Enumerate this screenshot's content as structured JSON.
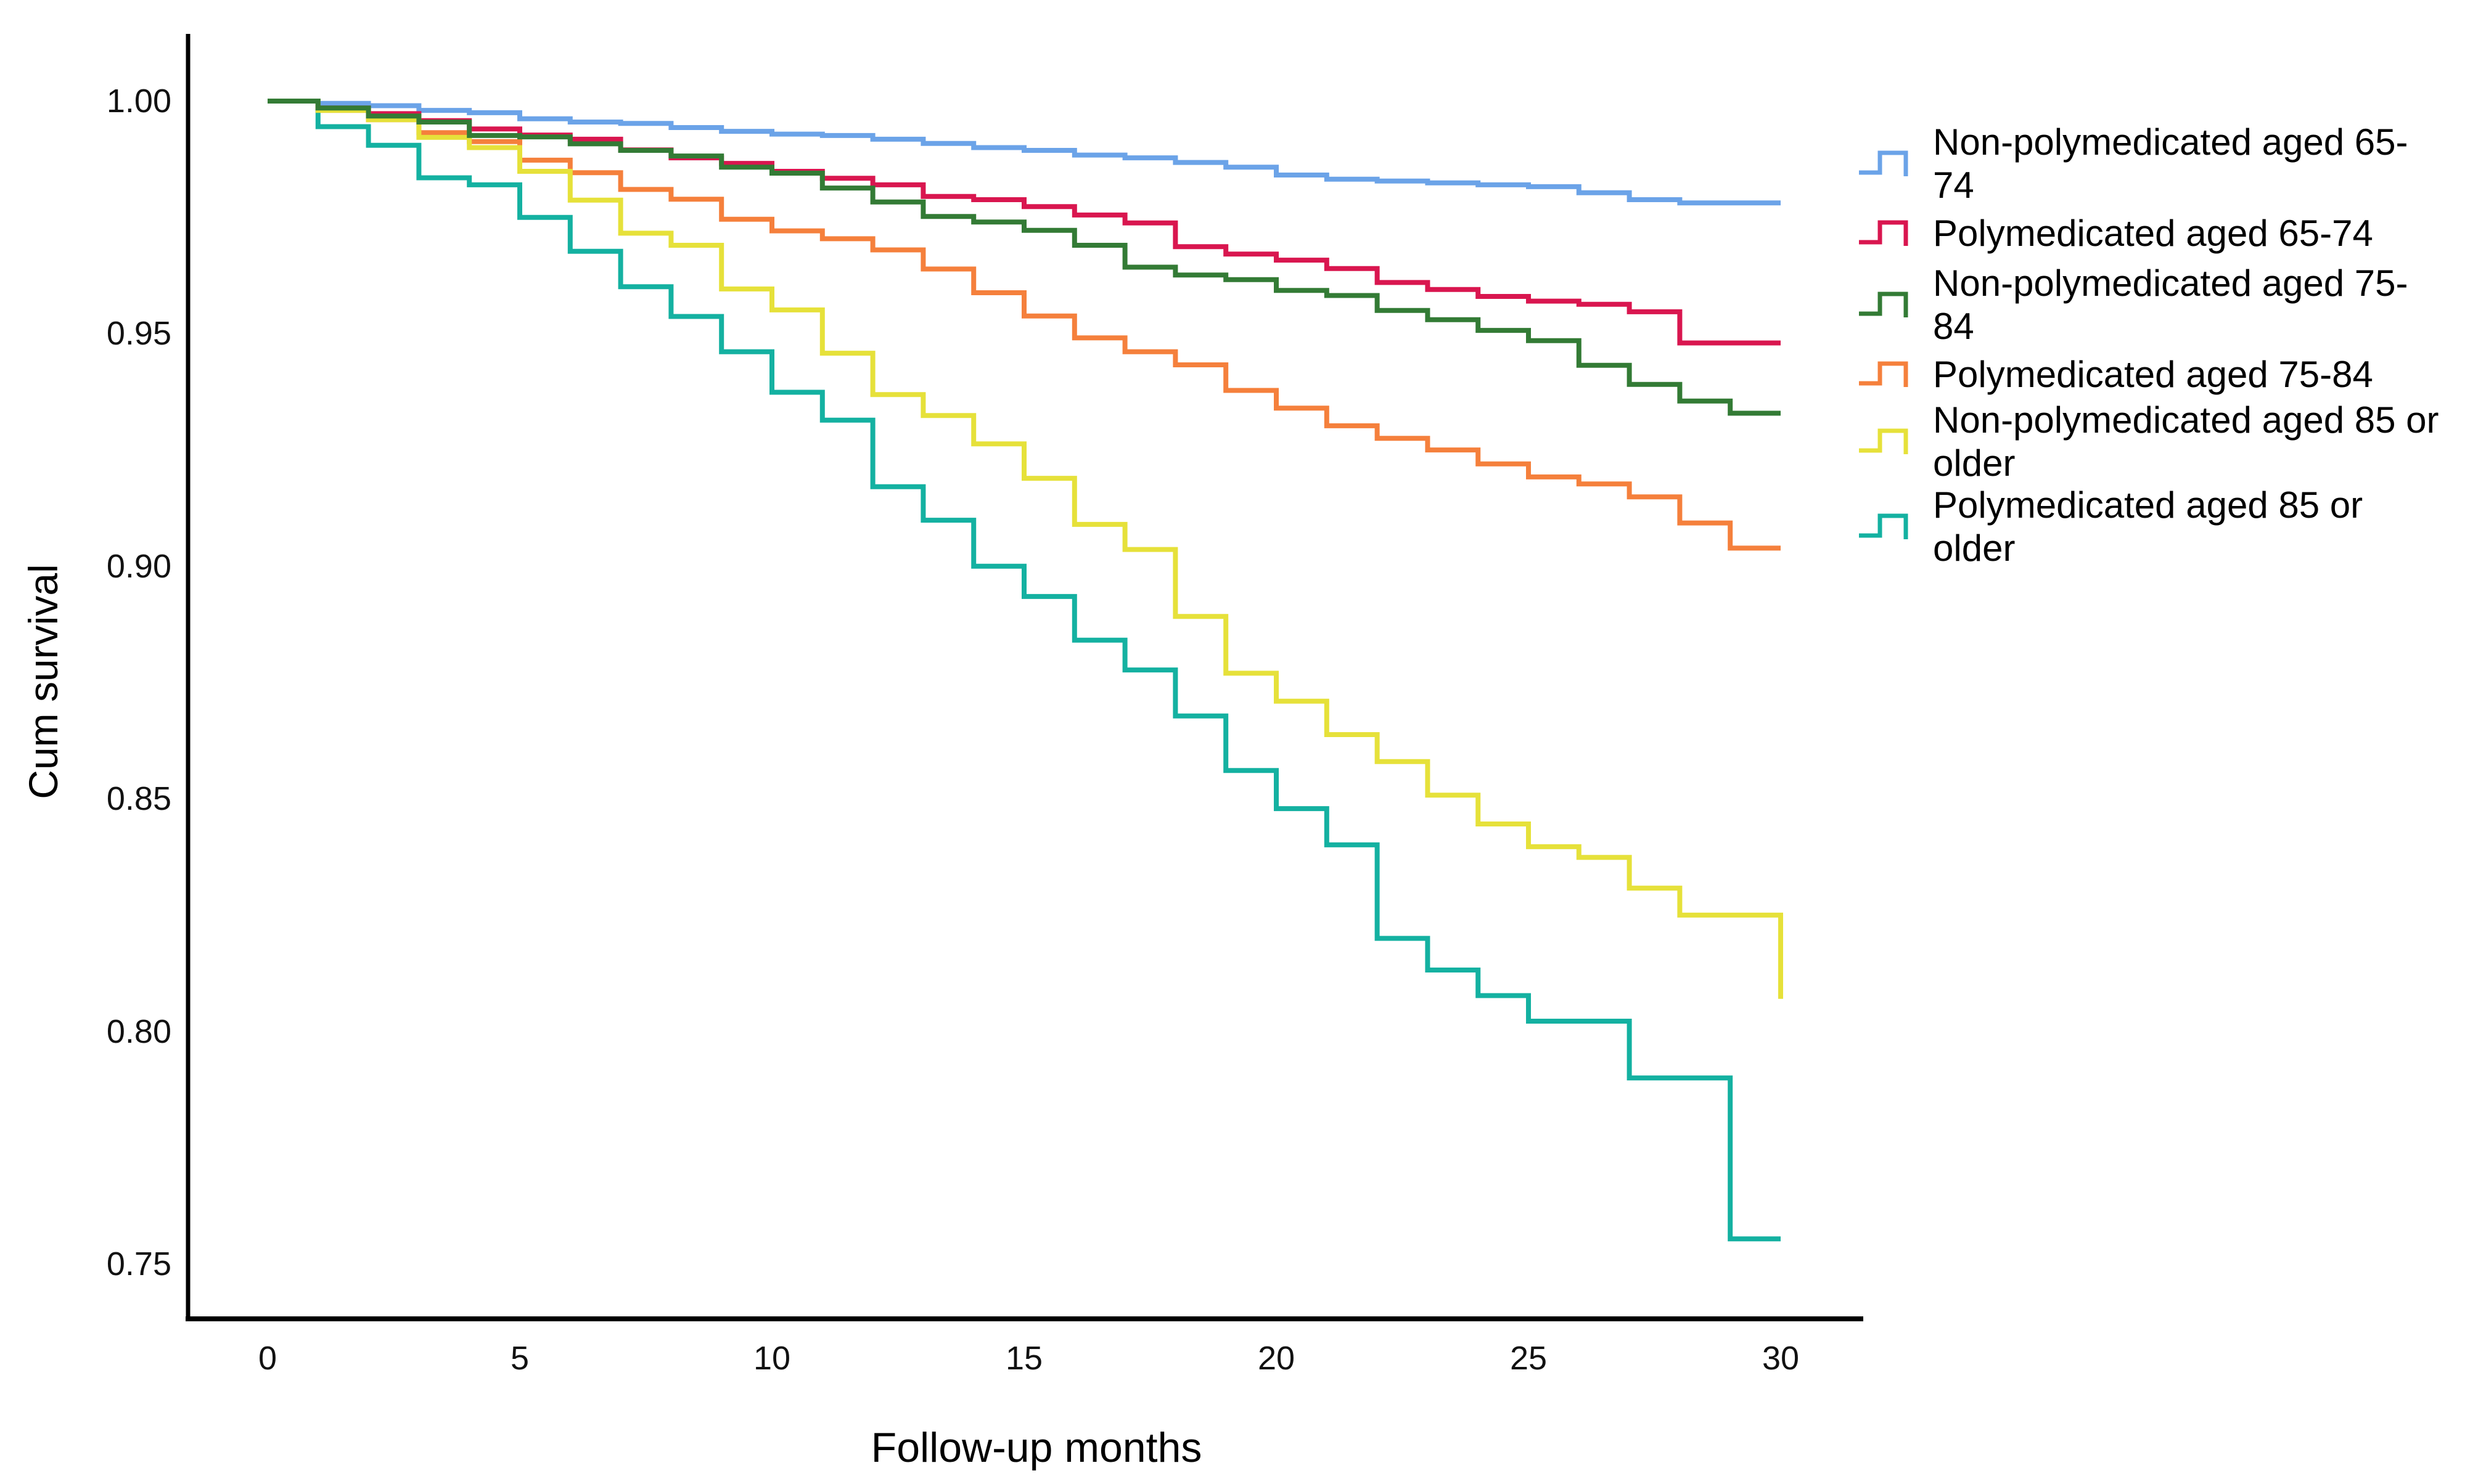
{
  "chart_data": {
    "type": "line",
    "subtype": "step-survival",
    "title": "",
    "xlabel": "Follow-up months",
    "ylabel": "Cum survival",
    "x_tick_labels": [
      "0",
      "5",
      "10",
      "15",
      "20",
      "25",
      "30"
    ],
    "y_tick_labels": [
      "1.00",
      "0.95",
      "0.90",
      "0.85",
      "0.80",
      "0.75"
    ],
    "x_ticks": [
      0,
      5,
      10,
      15,
      20,
      25,
      30
    ],
    "y_ticks": [
      1.0,
      0.95,
      0.9,
      0.85,
      0.8,
      0.75
    ],
    "xlim": [
      0,
      30
    ],
    "ylim": [
      0.738,
      1.012
    ],
    "grid": false,
    "legend_position": "right",
    "x_months": [
      0,
      1,
      2,
      3,
      4,
      5,
      6,
      7,
      8,
      9,
      10,
      11,
      12,
      13,
      14,
      15,
      16,
      17,
      18,
      19,
      20,
      21,
      22,
      23,
      24,
      25,
      26,
      27,
      28,
      29,
      30
    ],
    "series": [
      {
        "name": "Non-polymedicated aged 65-\n74",
        "color": "#6BA3E8",
        "values": [
          1.0,
          0.9995,
          0.999,
          0.998,
          0.9975,
          0.9962,
          0.9955,
          0.9952,
          0.9943,
          0.9935,
          0.9929,
          0.9926,
          0.9918,
          0.9909,
          0.99,
          0.9894,
          0.9884,
          0.9878,
          0.9868,
          0.9858,
          0.9841,
          0.9832,
          0.9828,
          0.9824,
          0.982,
          0.9816,
          0.9803,
          0.9788,
          0.9781,
          0.9781,
          0.9781
        ]
      },
      {
        "name": "Polymedicated aged 65-74",
        "color": "#D9164F",
        "values": [
          1.0,
          0.9985,
          0.9973,
          0.9958,
          0.994,
          0.9927,
          0.9918,
          0.9895,
          0.9878,
          0.9866,
          0.9849,
          0.9834,
          0.982,
          0.9795,
          0.9788,
          0.9773,
          0.9755,
          0.9738,
          0.9687,
          0.9671,
          0.9658,
          0.964,
          0.961,
          0.9595,
          0.958,
          0.957,
          0.9563,
          0.9547,
          0.948,
          0.948,
          0.948
        ]
      },
      {
        "name": "Non-polymedicated aged 75-\n84",
        "color": "#337B35",
        "values": [
          1.0,
          0.9985,
          0.9968,
          0.9955,
          0.9926,
          0.9923,
          0.9908,
          0.9894,
          0.9882,
          0.9858,
          0.9845,
          0.9813,
          0.9783,
          0.9752,
          0.974,
          0.9722,
          0.969,
          0.9643,
          0.9626,
          0.9616,
          0.9593,
          0.9582,
          0.955,
          0.953,
          0.9507,
          0.9485,
          0.9432,
          0.9391,
          0.9355,
          0.9329,
          0.9329
        ]
      },
      {
        "name": "Polymedicated aged 75-84",
        "color": "#F5803C",
        "values": [
          1.0,
          0.998,
          0.996,
          0.9932,
          0.9913,
          0.9873,
          0.9846,
          0.981,
          0.9789,
          0.9746,
          0.9721,
          0.9704,
          0.968,
          0.9639,
          0.9588,
          0.9538,
          0.9491,
          0.9461,
          0.9433,
          0.9378,
          0.934,
          0.9302,
          0.9275,
          0.925,
          0.922,
          0.9192,
          0.9177,
          0.9149,
          0.9093,
          0.9039,
          0.9039
        ]
      },
      {
        "name": "Non-polymedicated aged 85 or\nolder",
        "color": "#E6E13A",
        "values": [
          1.0,
          0.998,
          0.996,
          0.9922,
          0.99,
          0.9849,
          0.9787,
          0.9716,
          0.969,
          0.9596,
          0.9551,
          0.9458,
          0.9369,
          0.9324,
          0.9263,
          0.9189,
          0.909,
          0.9036,
          0.8892,
          0.877,
          0.871,
          0.8638,
          0.858,
          0.8508,
          0.8446,
          0.8397,
          0.8374,
          0.8308,
          0.825,
          0.825,
          0.807
        ]
      },
      {
        "name": "Polymedicated aged 85 or\nolder",
        "color": "#14B1A1",
        "values": [
          1.0,
          0.9945,
          0.9905,
          0.9835,
          0.982,
          0.975,
          0.9677,
          0.9601,
          0.9537,
          0.9461,
          0.9374,
          0.9314,
          0.9171,
          0.9099,
          0.9,
          0.8935,
          0.8841,
          0.8777,
          0.8678,
          0.8561,
          0.8479,
          0.8401,
          0.82,
          0.8132,
          0.8077,
          0.8022,
          0.8022,
          0.79,
          0.79,
          0.7554,
          0.7554
        ]
      }
    ]
  }
}
